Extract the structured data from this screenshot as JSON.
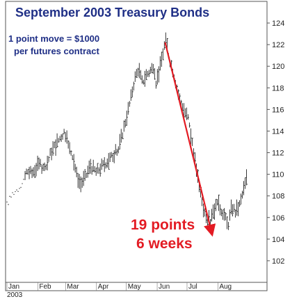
{
  "chart_data": {
    "type": "ohlc",
    "title": "September 2003 Treasury Bonds",
    "notes": [
      "1 point move = $1000",
      "per futures contract"
    ],
    "annotations": [
      "19 points",
      "6 weeks"
    ],
    "year_label": "2003",
    "x_labels": [
      "Jan",
      "Feb",
      "Mar",
      "Apr",
      "May",
      "Jun",
      "Jul",
      "Aug"
    ],
    "y_ticks": [
      102,
      104,
      106,
      108,
      110,
      112,
      114,
      116,
      118,
      120,
      122,
      124
    ],
    "ylim": [
      100,
      126
    ],
    "price_path": [
      [
        0,
        107.2
      ],
      [
        6,
        108.3
      ],
      [
        12,
        108.7
      ],
      [
        18,
        109.8
      ],
      [
        20,
        110.3
      ],
      [
        25,
        110.1
      ],
      [
        32,
        110.9
      ],
      [
        38,
        110.4
      ],
      [
        44,
        112.0
      ],
      [
        52,
        113.2
      ],
      [
        58,
        114.0
      ],
      [
        62,
        112.5
      ],
      [
        66,
        111.8
      ],
      [
        70,
        110.0
      ],
      [
        74,
        109.1
      ],
      [
        78,
        109.6
      ],
      [
        84,
        110.8
      ],
      [
        90,
        110.2
      ],
      [
        96,
        110.8
      ],
      [
        104,
        111.5
      ],
      [
        112,
        112.3
      ],
      [
        118,
        114.5
      ],
      [
        124,
        116.8
      ],
      [
        128,
        118.7
      ],
      [
        132,
        119.8
      ],
      [
        136,
        118.5
      ],
      [
        140,
        119.2
      ],
      [
        146,
        119.8
      ],
      [
        150,
        118.5
      ],
      [
        154,
        120.0
      ],
      [
        158,
        121.8
      ],
      [
        160,
        122.5
      ],
      [
        163,
        120.8
      ],
      [
        168,
        119.2
      ],
      [
        172,
        117.5
      ],
      [
        176,
        116.3
      ],
      [
        182,
        115.2
      ],
      [
        186,
        113.0
      ],
      [
        190,
        110.5
      ],
      [
        194,
        108.5
      ],
      [
        198,
        106.6
      ],
      [
        204,
        105.5
      ],
      [
        206,
        106.5
      ],
      [
        212,
        107.2
      ],
      [
        218,
        106.4
      ],
      [
        222,
        105.2
      ],
      [
        226,
        107.0
      ],
      [
        230,
        106.5
      ],
      [
        234,
        107.2
      ],
      [
        238,
        108.6
      ],
      [
        242,
        110.0
      ]
    ],
    "arrow": {
      "from": [
        159,
        122.2
      ],
      "to": [
        206,
        104.5
      ]
    }
  }
}
